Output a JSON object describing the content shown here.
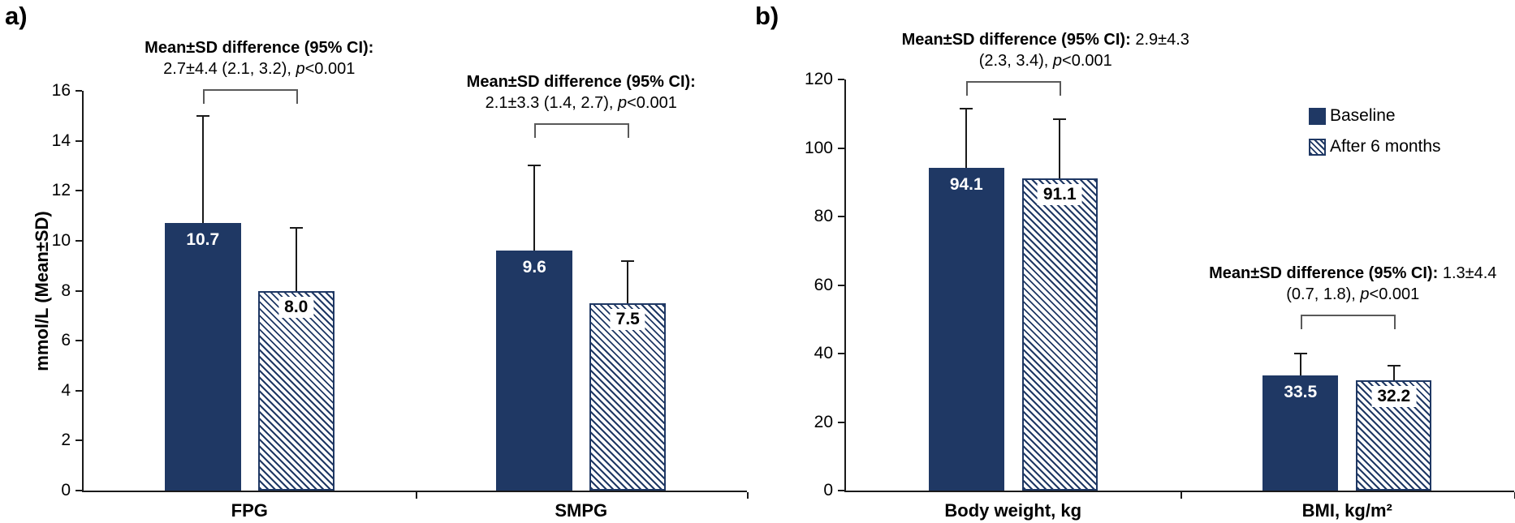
{
  "figure": {
    "panel_a_label": "a)",
    "panel_b_label": "b)"
  },
  "colors": {
    "navy": "#1F3864",
    "axis": "#1a1a1a",
    "bracket_gray": "#595959",
    "label_on_navy": "#ffffff",
    "label_on_hatch": "#000000",
    "background": "#ffffff"
  },
  "legend": [
    {
      "label": "Baseline",
      "swatch": "solid"
    },
    {
      "label": "After 6 months",
      "swatch": "hatched"
    }
  ],
  "chart_data": [
    {
      "id": "a",
      "type": "bar",
      "panel_label": "a)",
      "ylabel": "mmol/L (Mean±SD)",
      "ylim": [
        0,
        16
      ],
      "ytick_step": 2,
      "grid": false,
      "legend_position": "none",
      "categories": [
        "FPG",
        "SMPG"
      ],
      "series": [
        {
          "name": "Baseline",
          "style": "solid",
          "values": [
            10.7,
            9.6
          ],
          "error_top": [
            15.0,
            13.0
          ]
        },
        {
          "name": "After 6 months",
          "style": "hatched",
          "values": [
            8.0,
            7.5
          ],
          "error_top": [
            10.5,
            9.2
          ]
        }
      ],
      "value_labels": [
        [
          "10.7",
          "9.6"
        ],
        [
          "8.0",
          "7.5"
        ]
      ],
      "annotations": [
        {
          "line1_bold": "Mean±SD difference (95% CI):",
          "line1_rest": "",
          "line2_pre": "2.7±4.4 (2.1, 3.2), ",
          "p_italic": "p",
          "line2_post": "<0.001"
        },
        {
          "line1_bold": "Mean±SD difference (95% CI):",
          "line1_rest": "",
          "line2_pre": "2.1±3.3 (1.4, 2.7), ",
          "p_italic": "p",
          "line2_post": "<0.001"
        }
      ]
    },
    {
      "id": "b",
      "type": "bar",
      "panel_label": "b)",
      "ylabel": "",
      "ylim": [
        0,
        120
      ],
      "ytick_step": 20,
      "grid": false,
      "legend_position": "upper-right",
      "categories": [
        "Body weight, kg",
        "BMI, kg/m²"
      ],
      "series": [
        {
          "name": "Baseline",
          "style": "solid",
          "values": [
            94.1,
            33.5
          ],
          "error_top": [
            111.5,
            40.0
          ]
        },
        {
          "name": "After 6 months",
          "style": "hatched",
          "values": [
            91.1,
            32.2
          ],
          "error_top": [
            108.5,
            36.5
          ]
        }
      ],
      "value_labels": [
        [
          "94.1",
          "33.5"
        ],
        [
          "91.1",
          "32.2"
        ]
      ],
      "annotations": [
        {
          "line1_bold": "Mean±SD difference (95% CI):",
          "line1_rest": " 2.9±4.3",
          "line2_pre": "(2.3, 3.4), ",
          "p_italic": "p",
          "line2_post": "<0.001"
        },
        {
          "line1_bold": "Mean±SD difference (95% CI):",
          "line1_rest": " 1.3±4.4",
          "line2_pre": "(0.7, 1.8), ",
          "p_italic": "p",
          "line2_post": "<0.001"
        }
      ]
    }
  ]
}
